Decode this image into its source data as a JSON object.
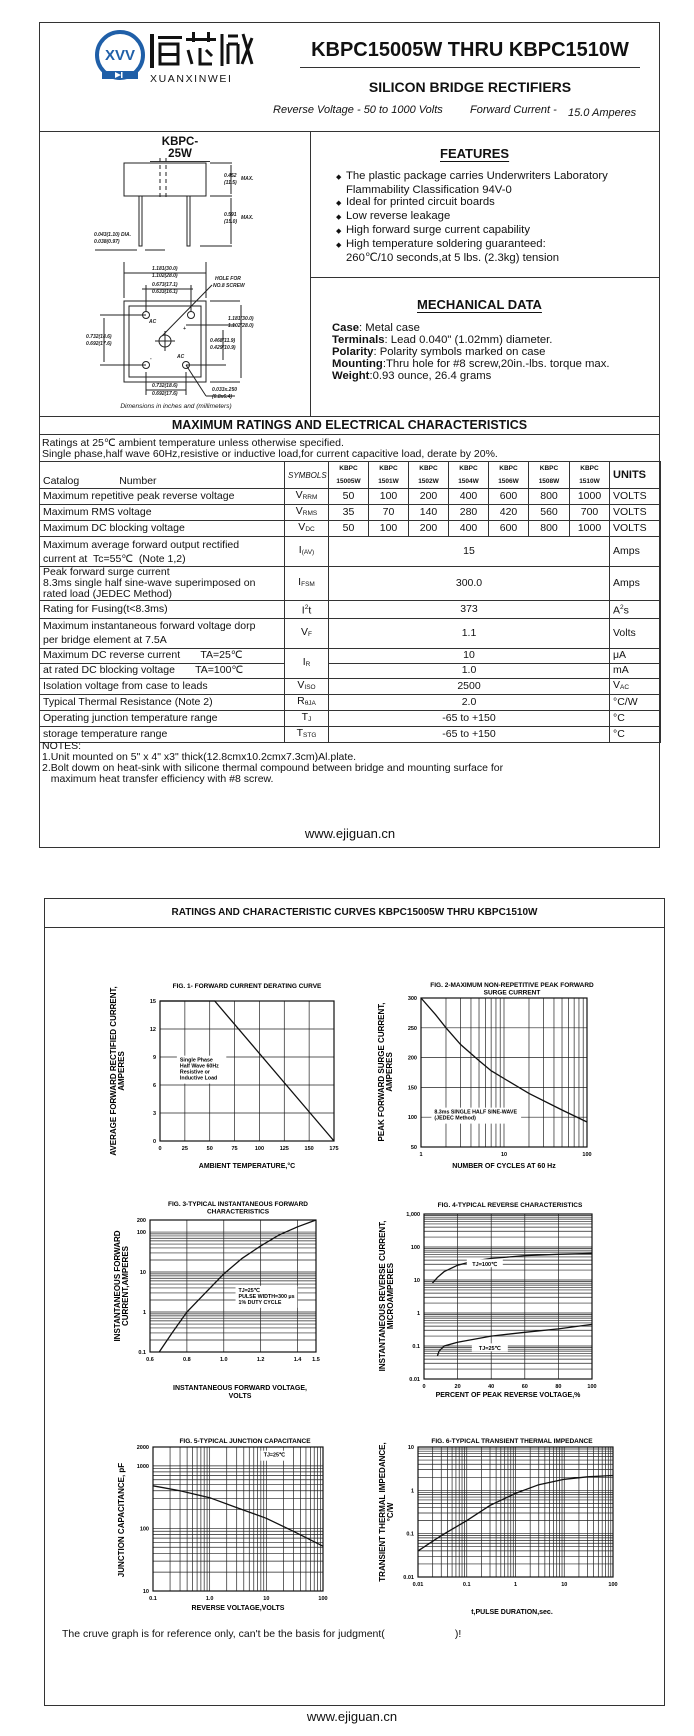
{
  "header": {
    "logo": {
      "symbol": "XVV",
      "chinese": "恒芯微",
      "latin": "XUANXINWEI",
      "color": "#1f5fa8"
    },
    "title": "KBPC15005W THRU KBPC1510W",
    "subtitle": "SILICON BRIDGE RECTIFIERS",
    "reverse_voltage": "Reverse Voltage - 50 to 1000 Volts",
    "forward_current_label": "Forward Current -",
    "forward_current_value": "15.0 Amperes"
  },
  "package": {
    "name": "KBPC-25W",
    "dims": [
      "0.452",
      "(11.5)",
      "MAX.",
      "0.591",
      "(15.0)",
      "MAX.",
      "0.043(1.10) DIA.",
      "0.038(0.97)",
      "1.181(30.0)",
      "1.102(28.0)",
      "0.673(17.1)",
      "0.633(16.1)",
      "HOLE FOR",
      "NO.8 SCREW",
      "1.181(30.0)",
      "1.102(28.0)",
      "0.732(18.6)",
      "0.692(17.6)",
      "0.468(11.9)",
      "0.429(10.9)",
      "0.732(18.6)",
      "0.692(17.6)",
      "0.033x.250",
      "(0.8x6.4)",
      "AC",
      "+",
      "-",
      "AC"
    ],
    "caption": "Dimensions in inches and (millimeters)"
  },
  "features": {
    "title": "FEATURES",
    "items": [
      [
        "The plastic package carries Underwriters Laboratory",
        "Flammability Classification 94V-0"
      ],
      [
        "Ideal for printed circuit boards"
      ],
      [
        "Low reverse leakage"
      ],
      [
        "High forward surge current capability"
      ],
      [
        "High temperature soldering guaranteed:",
        "260℃/10 seconds,at 5 lbs. (2.3kg) tension"
      ]
    ]
  },
  "mechanical": {
    "title": "MECHANICAL DATA",
    "items": [
      {
        "label": "Case",
        "value": ": Metal case"
      },
      {
        "label": "Terminals",
        "value": ": Lead 0.040\"   (1.02mm) diameter."
      },
      {
        "label": "Polarity",
        "value": ": Polarity symbols marked on case"
      },
      {
        "label": "Mounting",
        "value": ":Thru hole for #8 screw,20in.-lbs. torque max."
      },
      {
        "label": "Weight",
        "value": ":0.93 ounce, 26.4 grams"
      }
    ]
  },
  "ratings": {
    "title": "MAXIMUM RATINGS AND ELECTRICAL CHARACTERISTICS",
    "conditions": [
      "Ratings at 25℃ ambient temperature unless otherwise specified.",
      "Single phase,half wave 60Hz,resistive or inductive load,for current capacitive load, derate by 20%."
    ],
    "catalog_label": "Catalog",
    "number_label": "Number",
    "symbols_label": "SYMBOLS",
    "units_label": "UNITS",
    "parts": [
      [
        "KBPC",
        "15005W"
      ],
      [
        "KBPC",
        "1501W"
      ],
      [
        "KBPC",
        "1502W"
      ],
      [
        "KBPC",
        "1504W"
      ],
      [
        "KBPC",
        "1506W"
      ],
      [
        "KBPC",
        "1508W"
      ],
      [
        "KBPC",
        "1510W"
      ]
    ],
    "rows": [
      {
        "desc": [
          "Maximum repetitive peak reverse voltage"
        ],
        "sym": {
          "m": "V",
          "sub": "RRM"
        },
        "values": [
          "50",
          "100",
          "200",
          "400",
          "600",
          "800",
          "1000"
        ],
        "unit": {
          "m": "VOLTS"
        }
      },
      {
        "desc": [
          "Maximum RMS voltage"
        ],
        "sym": {
          "m": "V",
          "sub": "RMS"
        },
        "values": [
          "35",
          "70",
          "140",
          "280",
          "420",
          "560",
          "700"
        ],
        "unit": {
          "m": "VOLTS"
        }
      },
      {
        "desc": [
          "Maximum DC blocking voltage"
        ],
        "sym": {
          "m": "V",
          "sub": "DC"
        },
        "values": [
          "50",
          "100",
          "200",
          "400",
          "600",
          "800",
          "1000"
        ],
        "unit": {
          "m": "VOLTS"
        }
      },
      {
        "desc": [
          "Maximum average forward output rectified",
          "current at  Tc=55℃  (Note 1,2)"
        ],
        "sym": {
          "m": "I",
          "sub": "(AV)"
        },
        "value": "15",
        "unit": {
          "m": "Amps"
        }
      },
      {
        "desc": [
          "Peak forward surge current",
          "8.3ms single half sine-wave superimposed on",
          "rated load (JEDEC Method)"
        ],
        "sym": {
          "m": "I",
          "sub": "FSM"
        },
        "value": "300.0",
        "unit": {
          "m": "Amps"
        }
      },
      {
        "desc": [
          "Rating for Fusing(t<8.3ms)"
        ],
        "sym": {
          "m": "I",
          "sup": "2",
          "t": "t"
        },
        "value": "373",
        "unit": {
          "m": "A",
          "sup": "2",
          "t": "s"
        }
      },
      {
        "desc": [
          "Maximum instantaneous forward voltage dorp",
          "per bridge element at 7.5A"
        ],
        "sym": {
          "m": "V",
          "sub": "F"
        },
        "value": "1.1",
        "unit": {
          "m": "Volts"
        }
      },
      {
        "desc": [
          "Maximum DC reverse current       TA=25℃"
        ],
        "sym": {
          "m": "I",
          "sub": "R"
        },
        "value": "10",
        "unit": {
          "m": "μA"
        },
        "group": "start"
      },
      {
        "desc": [
          "at rated DC blocking voltage       TA=100℃"
        ],
        "value": "1.0",
        "unit": {
          "m": "mA"
        },
        "group": "cont"
      },
      {
        "desc": [
          "Isolation voltage from case to leads"
        ],
        "sym": {
          "m": "V",
          "sub": "ISO"
        },
        "value": "2500",
        "unit": {
          "m": "V",
          "sub": "AC"
        }
      },
      {
        "desc": [
          "Typical Thermal Resistance (Note 2)"
        ],
        "sym": {
          "m": "R",
          "sub": "θJA"
        },
        "value": "2.0",
        "unit": {
          "m": "°C/W"
        }
      },
      {
        "desc": [
          "Operating junction temperature range"
        ],
        "sym": {
          "m": "T",
          "sub": "J"
        },
        "value": "-65 to +150",
        "unit": {
          "m": "°C"
        }
      },
      {
        "desc": [
          "storage temperature range"
        ],
        "sym": {
          "m": "T",
          "sub": "STG"
        },
        "value": "-65 to +150",
        "unit": {
          "m": "°C"
        }
      }
    ]
  },
  "notes": {
    "title": "NOTES:",
    "items": [
      "1.Unit mounted on 5\"   x 4\"   x3\"   thick(12.8cmx10.2cmx7.3cm)Al.plate.",
      "2.Bolt dowm on heat-sink with silicone thermal compound between bridge and mounting surface for",
      "   maximum heat transfer efficiency with #8 screw."
    ]
  },
  "website": "www.ejiguan.cn",
  "curves": {
    "title": "RATINGS AND CHARACTERISTIC CURVES KBPC15005W THRU KBPC1510W",
    "footnote": "The cruve graph is for reference only, can't be the basis for judgment(                        )!",
    "website": "www.ejiguan.cn"
  },
  "chart_data": [
    {
      "type": "line",
      "title": [
        "FIG. 1- FORWARD CURRENT DERATING CURVE"
      ],
      "xlabel": [
        "AMBIENT TEMPERATURE,°C"
      ],
      "ylabel": [
        "AVERAGE FORWARD RECTIFIED CURRENT,",
        "AMPERES"
      ],
      "x_scale": "linear",
      "y_scale": "linear",
      "xlim": [
        0,
        175
      ],
      "ylim": [
        0,
        15
      ],
      "x_ticks": [
        0,
        25,
        50,
        75,
        100,
        125,
        150,
        175
      ],
      "x_tick_labels": [
        "0",
        "25",
        "50",
        "75",
        "100",
        "125",
        "150",
        "175"
      ],
      "y_ticks": [
        0,
        3,
        6,
        9,
        12,
        15
      ],
      "y_tick_labels": [
        "0",
        "3",
        "6",
        "9",
        "12",
        "15"
      ],
      "grid": true,
      "series": [
        {
          "points": [
            [
              0,
              15
            ],
            [
              55,
              15
            ],
            [
              175,
              0
            ]
          ]
        }
      ],
      "annotations": [
        [
          "Single Phase",
          "Half Wave 60Hz",
          "Resistive or",
          "Inductive Load"
        ]
      ]
    },
    {
      "type": "line",
      "title": [
        "FIG. 2-MAXIMUM NON-REPETITIVE PEAK FORWARD",
        "SURGE CURRENT"
      ],
      "xlabel": [
        "NUMBER OF CYCLES AT 60 Hz"
      ],
      "ylabel": [
        "PEAK  FORWARD SURGE CURRENT,",
        "AMPERES"
      ],
      "x_scale": "log",
      "y_scale": "linear",
      "xlim": [
        1,
        100
      ],
      "ylim": [
        50,
        300
      ],
      "x_ticks": [
        1,
        10,
        100
      ],
      "x_tick_labels": [
        "1",
        "10",
        "100"
      ],
      "y_ticks": [
        50,
        100,
        150,
        200,
        250,
        300
      ],
      "y_tick_labels": [
        "50",
        "100",
        "150",
        "200",
        "250",
        "300"
      ],
      "grid": true,
      "series": [
        {
          "points": [
            [
              1,
              300
            ],
            [
              1.5,
              272
            ],
            [
              2,
              250
            ],
            [
              3,
              222
            ],
            [
              5,
              195
            ],
            [
              7,
              178
            ],
            [
              10,
              165
            ],
            [
              20,
              140
            ],
            [
              50,
              112
            ],
            [
              100,
              92
            ]
          ]
        }
      ],
      "annotations": [
        [
          "8.3ms SINGLE HALF SINE-WAVE",
          "(JEDEC Method)"
        ]
      ]
    },
    {
      "type": "line",
      "title": [
        "FIG. 3-TYPICAL INSTANTANEOUS FORWARD",
        "CHARACTERISTICS"
      ],
      "xlabel": [
        "INSTANTANEOUS FORWARD VOLTAGE,",
        "VOLTS"
      ],
      "ylabel": [
        "INSTANTANEOUS FORWARD",
        "CURRENT,AMPERES"
      ],
      "x_scale": "linear",
      "y_scale": "log",
      "xlim": [
        0.6,
        1.5
      ],
      "ylim": [
        0.1,
        200
      ],
      "x_ticks": [
        0.6,
        0.8,
        1.0,
        1.2,
        1.4,
        1.5
      ],
      "x_tick_labels": [
        "0.6",
        "0.8",
        "1.0",
        "1.2",
        "1.4",
        "1.5"
      ],
      "y_ticks": [
        0.1,
        1,
        10,
        100,
        200
      ],
      "y_tick_labels": [
        "0.1",
        "1",
        "10",
        "100",
        "200"
      ],
      "grid": true,
      "series": [
        {
          "points": [
            [
              0.65,
              0.1
            ],
            [
              0.72,
              0.3
            ],
            [
              0.8,
              1
            ],
            [
              0.9,
              3
            ],
            [
              1.0,
              9
            ],
            [
              1.1,
              22
            ],
            [
              1.2,
              45
            ],
            [
              1.3,
              85
            ],
            [
              1.4,
              135
            ],
            [
              1.5,
              200
            ]
          ]
        }
      ],
      "annotations": [
        [
          "TJ=25℃",
          "PULSE WIDTH=300 μs",
          "1% DUTY CYCLE"
        ]
      ]
    },
    {
      "type": "line",
      "title": [
        "FIG. 4-TYPICAL REVERSE CHARACTERISTICS"
      ],
      "xlabel": [
        "PERCENT OF PEAK REVERSE VOLTAGE,%"
      ],
      "ylabel": [
        "INSTANTANEOUS REVERSE CURRENT,",
        "MICROAMPERES"
      ],
      "x_scale": "linear",
      "y_scale": "log",
      "xlim": [
        0,
        100
      ],
      "ylim": [
        0.01,
        1000
      ],
      "x_ticks": [
        0,
        20,
        40,
        60,
        80,
        100
      ],
      "x_tick_labels": [
        "0",
        "20",
        "40",
        "60",
        "80",
        "100"
      ],
      "y_ticks": [
        0.01,
        0.1,
        1,
        10,
        100,
        1000
      ],
      "y_tick_labels": [
        "0.01",
        "0.1",
        "1",
        "10",
        "100",
        "1,000"
      ],
      "grid": true,
      "series": [
        {
          "name": "TJ=100℃",
          "points": [
            [
              5,
              8
            ],
            [
              8,
              12
            ],
            [
              12,
              18
            ],
            [
              20,
              28
            ],
            [
              30,
              38
            ],
            [
              40,
              45
            ],
            [
              60,
              55
            ],
            [
              80,
              60
            ],
            [
              100,
              64
            ]
          ]
        },
        {
          "name": "TJ=25℃",
          "points": [
            [
              8,
              0.05
            ],
            [
              9,
              0.07
            ],
            [
              12,
              0.1
            ],
            [
              20,
              0.13
            ],
            [
              40,
              0.2
            ],
            [
              60,
              0.26
            ],
            [
              80,
              0.33
            ],
            [
              100,
              0.45
            ]
          ]
        }
      ]
    },
    {
      "type": "line",
      "title": [
        "FIG. 5-TYPICAL JUNCTION CAPACITANCE"
      ],
      "xlabel": [
        "REVERSE VOLTAGE,VOLTS"
      ],
      "ylabel": [
        "JUNCTION CAPACITANCE, pF"
      ],
      "x_scale": "log",
      "y_scale": "log",
      "xlim": [
        0.1,
        100
      ],
      "ylim": [
        10,
        2000
      ],
      "x_ticks": [
        0.1,
        1,
        10,
        100
      ],
      "x_tick_labels": [
        "0.1",
        "1.0",
        "10",
        "100"
      ],
      "y_ticks": [
        10,
        100,
        1000,
        2000
      ],
      "y_tick_labels": [
        "10",
        "100",
        "1000",
        "2000"
      ],
      "grid": true,
      "series": [
        {
          "points": [
            [
              0.1,
              480
            ],
            [
              0.3,
              400
            ],
            [
              1,
              310
            ],
            [
              3,
              215
            ],
            [
              10,
              145
            ],
            [
              30,
              90
            ],
            [
              100,
              52
            ]
          ]
        }
      ],
      "annotations": [
        [
          "TJ=25℃"
        ]
      ]
    },
    {
      "type": "line",
      "title": [
        "FIG. 6-TYPICAL TRANSIENT THERMAL IMPEDANCE"
      ],
      "xlabel": [
        "t,PULSE DURATION,sec."
      ],
      "ylabel": [
        "TRANSIENT THERMAL IMPEDANCE,",
        "°C/W"
      ],
      "x_scale": "log",
      "y_scale": "log",
      "xlim": [
        0.01,
        100
      ],
      "ylim": [
        0.01,
        10
      ],
      "x_ticks": [
        0.01,
        0.1,
        1,
        10,
        100
      ],
      "x_tick_labels": [
        "0.01",
        "0.1",
        "1",
        "10",
        "100"
      ],
      "y_ticks": [
        0.01,
        0.1,
        1,
        10
      ],
      "y_tick_labels": [
        "0.01",
        "0.1",
        "1",
        "10"
      ],
      "grid": true,
      "series": [
        {
          "points": [
            [
              0.01,
              0.04
            ],
            [
              0.03,
              0.09
            ],
            [
              0.1,
              0.2
            ],
            [
              0.3,
              0.45
            ],
            [
              1,
              0.85
            ],
            [
              3,
              1.35
            ],
            [
              10,
              1.8
            ],
            [
              30,
              2.05
            ],
            [
              100,
              2.2
            ]
          ]
        }
      ]
    }
  ]
}
